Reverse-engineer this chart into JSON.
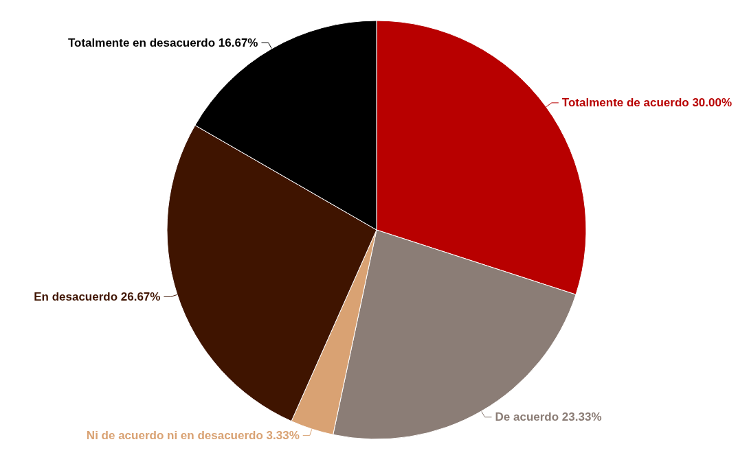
{
  "chart_data": {
    "type": "pie",
    "categories": [
      "Totalmente de acuerdo",
      "De acuerdo",
      "Ni de acuerdo ni en desacuerdo",
      "En desacuerdo",
      "Totalmente en desacuerdo"
    ],
    "values": [
      30,
      23.33,
      3.33,
      26.67,
      16.67
    ],
    "value_labels": [
      "30.00%",
      "23.33%",
      "3.33%",
      "26.67%",
      "16.67%"
    ],
    "colors": [
      "#b80000",
      "#8b7d76",
      "#d9a273",
      "#3f1400",
      "#000000"
    ],
    "legend": false
  }
}
